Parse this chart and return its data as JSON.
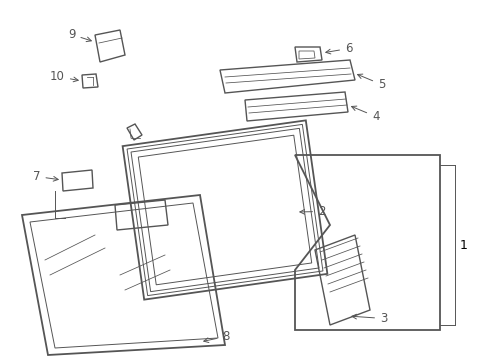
{
  "background_color": "#ffffff",
  "line_color": "#555555",
  "label_color": "#000000",
  "fig_width": 4.89,
  "fig_height": 3.6,
  "dpi": 100
}
